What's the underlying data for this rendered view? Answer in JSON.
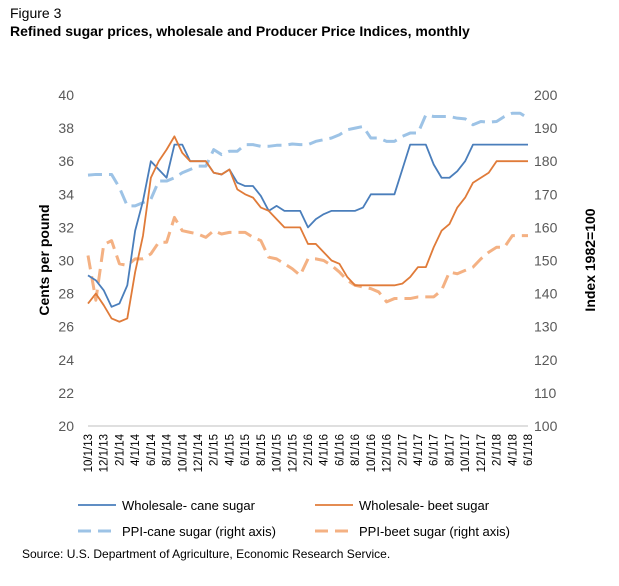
{
  "figure_label": "Figure 3",
  "title": "Refined sugar prices, wholesale and Producer Price Indices, monthly",
  "source": "Source: U.S. Department of Agriculture, Economic Research Service.",
  "chart_data": {
    "type": "line",
    "ylabel": "Cents per pound",
    "y2label": "Index 1982=100",
    "ylim": [
      20,
      40
    ],
    "y2lim": [
      100,
      200
    ],
    "yticks": [
      20,
      22,
      24,
      26,
      28,
      30,
      32,
      34,
      36,
      38,
      40
    ],
    "y2ticks": [
      100,
      110,
      120,
      130,
      140,
      150,
      160,
      170,
      180,
      190,
      200
    ],
    "grid": false,
    "legend_position": "bottom",
    "x_tick_labels": [
      "10/1/13",
      "12/1/13",
      "2/1/14",
      "4/1/14",
      "6/1/14",
      "8/1/14",
      "10/1/14",
      "12/1/14",
      "2/1/15",
      "4/1/15",
      "6/1/15",
      "8/1/15",
      "10/1/15",
      "12/1/15",
      "2/1/16",
      "4/1/16",
      "6/1/16",
      "8/1/16",
      "10/1/16",
      "12/1/16",
      "2/1/17",
      "4/1/17",
      "6/1/17",
      "8/1/17",
      "10/1/17",
      "12/1/17",
      "2/1/18",
      "4/1/18",
      "6/1/18"
    ],
    "x": [
      "10/1/13",
      "11/1/13",
      "12/1/13",
      "1/1/14",
      "2/1/14",
      "3/1/14",
      "4/1/14",
      "5/1/14",
      "6/1/14",
      "7/1/14",
      "8/1/14",
      "9/1/14",
      "10/1/14",
      "11/1/14",
      "12/1/14",
      "1/1/15",
      "2/1/15",
      "3/1/15",
      "4/1/15",
      "5/1/15",
      "6/1/15",
      "7/1/15",
      "8/1/15",
      "9/1/15",
      "10/1/15",
      "11/1/15",
      "12/1/15",
      "1/1/16",
      "2/1/16",
      "3/1/16",
      "4/1/16",
      "5/1/16",
      "6/1/16",
      "7/1/16",
      "8/1/16",
      "9/1/16",
      "10/1/16",
      "11/1/16",
      "12/1/16",
      "1/1/17",
      "2/1/17",
      "3/1/17",
      "4/1/17",
      "5/1/17",
      "6/1/17",
      "7/1/17",
      "8/1/17",
      "9/1/17",
      "10/1/17",
      "11/1/17",
      "12/1/17",
      "1/1/18",
      "2/1/18",
      "3/1/18",
      "4/1/18",
      "5/1/18",
      "6/1/18"
    ],
    "series": [
      {
        "name": "Wholesale- cane sugar",
        "axis": "left",
        "style": "solid",
        "color": "#4a7ebb",
        "values": [
          29.1,
          28.8,
          28.2,
          27.2,
          27.4,
          28.5,
          31.8,
          33.6,
          36.0,
          35.5,
          35.0,
          37.0,
          37.0,
          36.0,
          36.0,
          36.0,
          35.3,
          35.2,
          35.5,
          34.7,
          34.5,
          34.5,
          33.9,
          33.0,
          33.3,
          33.0,
          33.0,
          33.0,
          32.0,
          32.5,
          32.8,
          33.0,
          33.0,
          33.0,
          33.0,
          33.2,
          34.0,
          34.0,
          34.0,
          34.0,
          35.5,
          37.0,
          37.0,
          37.0,
          35.8,
          35.0,
          35.0,
          35.4,
          36.0,
          37.0,
          37.0,
          37.0,
          37.0,
          37.0,
          37.0,
          37.0,
          37.0
        ]
      },
      {
        "name": "Wholesale- beet sugar",
        "axis": "left",
        "style": "solid",
        "color": "#e07b39",
        "values": [
          27.4,
          28.0,
          27.3,
          26.5,
          26.3,
          26.5,
          29.3,
          31.5,
          35.0,
          36.0,
          36.7,
          37.5,
          36.5,
          36.0,
          36.0,
          36.0,
          35.3,
          35.2,
          35.5,
          34.3,
          34.0,
          33.8,
          33.2,
          33.0,
          32.5,
          32.0,
          32.0,
          32.0,
          31.0,
          31.0,
          30.5,
          30.0,
          29.8,
          29.0,
          28.5,
          28.5,
          28.5,
          28.5,
          28.5,
          28.5,
          28.6,
          29.0,
          29.6,
          29.6,
          30.8,
          31.8,
          32.2,
          33.2,
          33.8,
          34.7,
          35.0,
          35.3,
          36.0,
          36.0,
          36.0,
          36.0,
          36.0
        ]
      },
      {
        "name": "PPI-cane sugar (right axis)",
        "axis": "right",
        "style": "dashed",
        "color": "#9dc3e6",
        "values": [
          175.8,
          176.0,
          176.0,
          176.0,
          172.0,
          166.5,
          166.5,
          167.5,
          168.5,
          174.0,
          174.0,
          175.0,
          176.5,
          177.5,
          178.5,
          178.5,
          183.5,
          182.0,
          183.0,
          183.0,
          185.0,
          185.0,
          184.5,
          184.5,
          184.8,
          184.8,
          185.2,
          185.0,
          185.0,
          186.0,
          186.5,
          187.0,
          188.0,
          189.5,
          190.0,
          190.5,
          187.0,
          187.0,
          186.0,
          186.0,
          187.5,
          188.5,
          188.5,
          194.0,
          193.5,
          193.5,
          193.5,
          193.0,
          192.8,
          191.0,
          192.0,
          191.8,
          192.0,
          193.5,
          194.5,
          194.5,
          193.0
        ]
      },
      {
        "name": "PPI-beet sugar (right axis)",
        "axis": "right",
        "style": "dashed",
        "color": "#f4b183",
        "values": [
          151.5,
          138.0,
          154.8,
          156.0,
          149.0,
          148.5,
          150.5,
          150.5,
          152.0,
          155.5,
          155.5,
          163.0,
          159.0,
          158.5,
          158.0,
          157.0,
          159.0,
          158.0,
          158.5,
          158.5,
          158.5,
          157.0,
          156.0,
          151.0,
          150.5,
          149.0,
          147.5,
          145.5,
          150.5,
          150.5,
          150.0,
          148.5,
          146.5,
          144.0,
          142.5,
          142.0,
          141.5,
          140.5,
          137.5,
          138.5,
          138.5,
          138.5,
          139.0,
          139.0,
          139.0,
          141.0,
          146.5,
          146.0,
          147.0,
          148.0,
          150.5,
          152.5,
          154.0,
          154.0,
          157.5,
          157.5,
          157.5
        ]
      }
    ]
  }
}
